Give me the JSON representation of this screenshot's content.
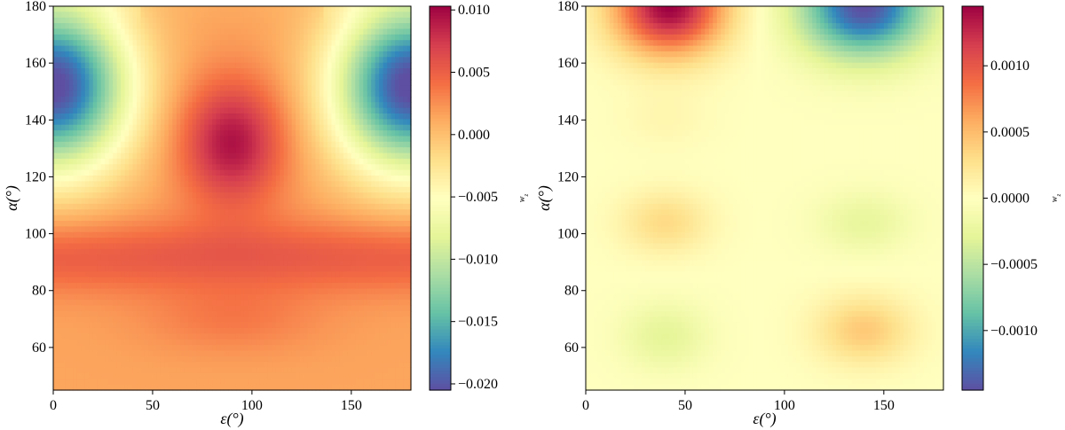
{
  "chart_data": [
    {
      "type": "heatmap",
      "title": "",
      "xlabel": "ε(°)",
      "ylabel": "α(°)",
      "xlim": [
        0,
        180
      ],
      "ylim": [
        45,
        180
      ],
      "x_ticks": [
        0,
        50,
        100,
        150
      ],
      "y_ticks": [
        60,
        80,
        100,
        120,
        140,
        160,
        180
      ],
      "colormap": "Spectral_r",
      "colorbar": {
        "label": "w_z",
        "min": -0.0205,
        "max": 0.0103,
        "ticks": [
          0.01,
          0.005,
          0.0,
          -0.005,
          -0.01,
          -0.015,
          -0.02
        ],
        "tick_labels": [
          "0.010",
          "0.005",
          "0.000",
          "−0.005",
          "−0.010",
          "−0.015",
          "−0.020"
        ]
      },
      "features": [
        {
          "desc": "maximum",
          "x": 90,
          "y": 133,
          "value": 0.0103
        },
        {
          "desc": "minimum",
          "x": 0,
          "y": 152,
          "value": -0.0205
        },
        {
          "desc": "minimum",
          "x": 180,
          "y": 152,
          "value": -0.0205
        },
        {
          "desc": "band",
          "y": 92,
          "value": 0.005
        },
        {
          "desc": "baseline",
          "y": 48,
          "value": 0.0015
        }
      ]
    },
    {
      "type": "heatmap",
      "title": "",
      "xlabel": "ε(°)",
      "ylabel": "α(°)",
      "xlim": [
        0,
        180
      ],
      "ylim": [
        45,
        180
      ],
      "x_ticks": [
        0,
        50,
        100,
        150
      ],
      "y_ticks": [
        60,
        80,
        100,
        120,
        140,
        160,
        180
      ],
      "colormap": "Spectral_r",
      "colorbar": {
        "label": "w_z",
        "min": -0.00145,
        "max": 0.00145,
        "ticks": [
          0.001,
          0.0005,
          0.0,
          -0.0005,
          -0.001
        ],
        "tick_labels": [
          "0.0010",
          "0.0005",
          "0.0000",
          "−0.0005",
          "−0.0010"
        ]
      },
      "features": [
        {
          "desc": "maximum",
          "x": 42,
          "y": 180,
          "value": 0.00145
        },
        {
          "desc": "minimum",
          "x": 140,
          "y": 180,
          "value": -0.00145
        },
        {
          "desc": "lobe",
          "x": 40,
          "y": 104,
          "value": 0.00032
        },
        {
          "desc": "lobe",
          "x": 140,
          "y": 104,
          "value": -0.00025
        },
        {
          "desc": "lobe",
          "x": 40,
          "y": 64,
          "value": -0.00028
        },
        {
          "desc": "lobe",
          "x": 140,
          "y": 66,
          "value": 0.00042
        }
      ]
    }
  ]
}
